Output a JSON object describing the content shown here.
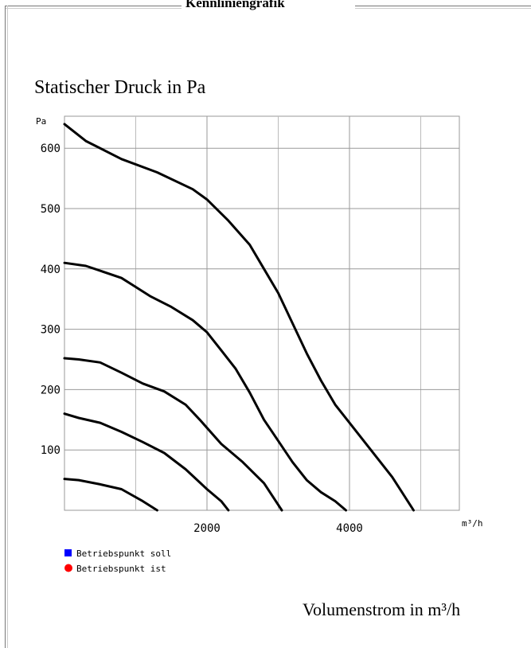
{
  "fieldset": {
    "title": "Kennliniengrafik"
  },
  "y_title": "Statischer Druck in Pa",
  "x_title": "Volumenstrom in m³/h",
  "chart_data": {
    "type": "line",
    "title": "",
    "xlabel": "m³/h",
    "ylabel": "Pa",
    "xlim": [
      0,
      5500
    ],
    "ylim": [
      0,
      650
    ],
    "xticks": [
      2000,
      4000
    ],
    "yticks": [
      100,
      200,
      300,
      400,
      500,
      600
    ],
    "grid": true,
    "series": [
      {
        "values": [
          [
            0,
            640
          ],
          [
            300,
            612
          ],
          [
            800,
            582
          ],
          [
            1300,
            560
          ],
          [
            1800,
            532
          ],
          [
            2000,
            515
          ],
          [
            2300,
            480
          ],
          [
            2600,
            440
          ],
          [
            2800,
            400
          ],
          [
            3000,
            360
          ],
          [
            3200,
            310
          ],
          [
            3400,
            260
          ],
          [
            3600,
            215
          ],
          [
            3800,
            175
          ],
          [
            4000,
            145
          ],
          [
            4200,
            115
          ],
          [
            4400,
            85
          ],
          [
            4600,
            55
          ],
          [
            4900,
            0
          ]
        ]
      },
      {
        "values": [
          [
            0,
            410
          ],
          [
            300,
            405
          ],
          [
            500,
            397
          ],
          [
            800,
            385
          ],
          [
            1000,
            370
          ],
          [
            1200,
            355
          ],
          [
            1500,
            337
          ],
          [
            1800,
            315
          ],
          [
            2000,
            295
          ],
          [
            2200,
            265
          ],
          [
            2400,
            235
          ],
          [
            2600,
            195
          ],
          [
            2800,
            150
          ],
          [
            3000,
            115
          ],
          [
            3200,
            80
          ],
          [
            3400,
            50
          ],
          [
            3600,
            30
          ],
          [
            3800,
            15
          ],
          [
            3950,
            0
          ]
        ]
      },
      {
        "values": [
          [
            0,
            252
          ],
          [
            200,
            250
          ],
          [
            500,
            245
          ],
          [
            800,
            228
          ],
          [
            1100,
            210
          ],
          [
            1400,
            197
          ],
          [
            1700,
            175
          ],
          [
            1900,
            150
          ],
          [
            2200,
            110
          ],
          [
            2500,
            80
          ],
          [
            2800,
            45
          ],
          [
            3050,
            0
          ]
        ]
      },
      {
        "values": [
          [
            0,
            160
          ],
          [
            200,
            153
          ],
          [
            500,
            145
          ],
          [
            800,
            130
          ],
          [
            1100,
            113
          ],
          [
            1400,
            95
          ],
          [
            1700,
            68
          ],
          [
            2000,
            35
          ],
          [
            2200,
            15
          ],
          [
            2300,
            0
          ]
        ]
      },
      {
        "values": [
          [
            0,
            52
          ],
          [
            200,
            50
          ],
          [
            500,
            43
          ],
          [
            800,
            35
          ],
          [
            1100,
            15
          ],
          [
            1300,
            0
          ]
        ]
      }
    ],
    "legend": [
      {
        "label": "Betriebspunkt soll",
        "color": "#0000ff",
        "marker": "square"
      },
      {
        "label": "Betriebspunkt ist",
        "color": "#ff0000",
        "marker": "circle"
      }
    ]
  }
}
